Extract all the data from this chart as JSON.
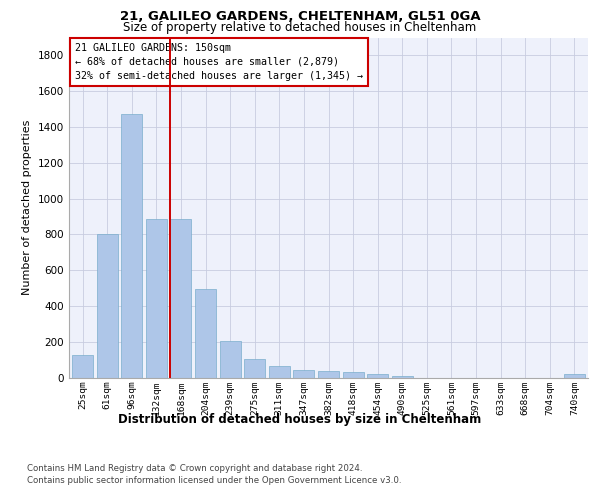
{
  "title1": "21, GALILEO GARDENS, CHELTENHAM, GL51 0GA",
  "title2": "Size of property relative to detached houses in Cheltenham",
  "xlabel": "Distribution of detached houses by size in Cheltenham",
  "ylabel": "Number of detached properties",
  "categories": [
    "25sqm",
    "61sqm",
    "96sqm",
    "132sqm",
    "168sqm",
    "204sqm",
    "239sqm",
    "275sqm",
    "311sqm",
    "347sqm",
    "382sqm",
    "418sqm",
    "454sqm",
    "490sqm",
    "525sqm",
    "561sqm",
    "597sqm",
    "633sqm",
    "668sqm",
    "704sqm",
    "740sqm"
  ],
  "values": [
    125,
    800,
    1475,
    885,
    885,
    495,
    205,
    105,
    65,
    42,
    35,
    30,
    22,
    8,
    0,
    0,
    0,
    0,
    0,
    0,
    18
  ],
  "bar_color": "#aec6e8",
  "bar_edge_color": "#7aaecc",
  "vline_color": "#cc0000",
  "annotation_box_text": "21 GALILEO GARDENS: 150sqm\n← 68% of detached houses are smaller (2,879)\n32% of semi-detached houses are larger (1,345) →",
  "annotation_box_color": "#cc0000",
  "ylim": [
    0,
    1900
  ],
  "yticks": [
    0,
    200,
    400,
    600,
    800,
    1000,
    1200,
    1400,
    1600,
    1800
  ],
  "footer1": "Contains HM Land Registry data © Crown copyright and database right 2024.",
  "footer2": "Contains public sector information licensed under the Open Government Licence v3.0.",
  "background_color": "#eef1fb",
  "grid_color": "#c8cce0"
}
